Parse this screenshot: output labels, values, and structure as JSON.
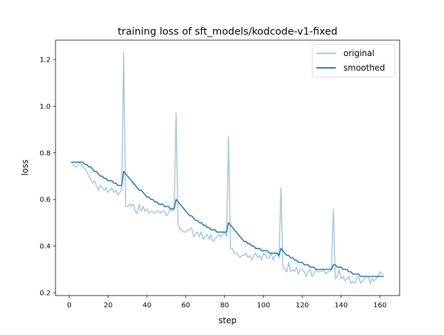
{
  "chart_data": {
    "type": "line",
    "title": "training loss of sft_models/kodcode-v1-fixed",
    "xlabel": "step",
    "ylabel": "loss",
    "xlim": [
      -7.1,
      170.1
    ],
    "ylim": [
      0.188,
      1.283
    ],
    "xticks": [
      0,
      20,
      40,
      60,
      80,
      100,
      120,
      140,
      160
    ],
    "yticks": [
      0.2,
      0.4,
      0.6,
      0.8,
      1.0,
      1.2
    ],
    "ytick_labels": [
      "0.2",
      "0.4",
      "0.6",
      "0.8",
      "1.0",
      "1.2"
    ],
    "grid": false,
    "legend_position": "top-right",
    "x_start": 1,
    "series": [
      {
        "name": "original",
        "color": "#a6c8e2",
        "values": [
          0.76,
          0.75,
          0.74,
          0.74,
          0.76,
          0.75,
          0.74,
          0.73,
          0.72,
          0.7,
          0.69,
          0.67,
          0.68,
          0.66,
          0.64,
          0.66,
          0.65,
          0.64,
          0.65,
          0.63,
          0.64,
          0.65,
          0.63,
          0.64,
          0.62,
          0.63,
          0.64,
          1.23,
          0.57,
          0.57,
          0.58,
          0.57,
          0.58,
          0.55,
          0.54,
          0.58,
          0.55,
          0.57,
          0.55,
          0.56,
          0.54,
          0.55,
          0.55,
          0.54,
          0.55,
          0.55,
          0.54,
          0.55,
          0.55,
          0.53,
          0.54,
          0.56,
          0.55,
          0.57,
          0.97,
          0.5,
          0.47,
          0.47,
          0.46,
          0.46,
          0.47,
          0.47,
          0.48,
          0.44,
          0.45,
          0.46,
          0.44,
          0.46,
          0.43,
          0.44,
          0.45,
          0.43,
          0.45,
          0.42,
          0.43,
          0.44,
          0.45,
          0.44,
          0.45,
          0.46,
          0.44,
          0.87,
          0.39,
          0.39,
          0.37,
          0.37,
          0.36,
          0.35,
          0.36,
          0.36,
          0.37,
          0.35,
          0.36,
          0.34,
          0.36,
          0.37,
          0.35,
          0.36,
          0.34,
          0.37,
          0.36,
          0.35,
          0.35,
          0.37,
          0.34,
          0.36,
          0.37,
          0.35,
          0.65,
          0.31,
          0.3,
          0.29,
          0.33,
          0.29,
          0.3,
          0.29,
          0.31,
          0.28,
          0.3,
          0.3,
          0.29,
          0.27,
          0.29,
          0.3,
          0.27,
          0.28,
          0.3,
          0.29,
          0.29,
          0.29,
          0.3,
          0.28,
          0.29,
          0.29,
          0.3,
          0.56,
          0.26,
          0.27,
          0.3,
          0.26,
          0.27,
          0.25,
          0.26,
          0.27,
          0.24,
          0.25,
          0.24,
          0.26,
          0.27,
          0.24,
          0.25,
          0.26,
          0.27,
          0.27,
          0.24,
          0.26,
          0.25,
          0.26,
          0.27,
          0.29,
          0.28,
          0.28
        ]
      },
      {
        "name": "smoothed",
        "color": "#1f77b4",
        "values": [
          0.76,
          0.76,
          0.76,
          0.76,
          0.76,
          0.76,
          0.76,
          0.75,
          0.75,
          0.74,
          0.74,
          0.73,
          0.72,
          0.72,
          0.71,
          0.7,
          0.7,
          0.69,
          0.69,
          0.68,
          0.68,
          0.68,
          0.67,
          0.67,
          0.66,
          0.66,
          0.66,
          0.72,
          0.71,
          0.7,
          0.69,
          0.68,
          0.67,
          0.66,
          0.65,
          0.64,
          0.64,
          0.63,
          0.62,
          0.61,
          0.61,
          0.6,
          0.6,
          0.59,
          0.59,
          0.58,
          0.58,
          0.58,
          0.57,
          0.57,
          0.57,
          0.56,
          0.56,
          0.56,
          0.6,
          0.59,
          0.58,
          0.57,
          0.56,
          0.55,
          0.54,
          0.53,
          0.53,
          0.52,
          0.51,
          0.51,
          0.5,
          0.5,
          0.49,
          0.49,
          0.48,
          0.48,
          0.47,
          0.47,
          0.47,
          0.46,
          0.46,
          0.46,
          0.46,
          0.46,
          0.46,
          0.5,
          0.49,
          0.48,
          0.47,
          0.46,
          0.45,
          0.44,
          0.43,
          0.42,
          0.42,
          0.41,
          0.41,
          0.4,
          0.4,
          0.39,
          0.39,
          0.39,
          0.38,
          0.38,
          0.38,
          0.38,
          0.37,
          0.37,
          0.37,
          0.37,
          0.37,
          0.36,
          0.39,
          0.38,
          0.37,
          0.36,
          0.36,
          0.35,
          0.35,
          0.34,
          0.34,
          0.33,
          0.33,
          0.33,
          0.32,
          0.32,
          0.32,
          0.31,
          0.31,
          0.31,
          0.3,
          0.3,
          0.3,
          0.3,
          0.3,
          0.3,
          0.3,
          0.3,
          0.3,
          0.32,
          0.32,
          0.31,
          0.31,
          0.31,
          0.3,
          0.3,
          0.3,
          0.29,
          0.29,
          0.28,
          0.28,
          0.28,
          0.28,
          0.27,
          0.27,
          0.27,
          0.27,
          0.27,
          0.27,
          0.27,
          0.27,
          0.27,
          0.27,
          0.27,
          0.27,
          0.27
        ]
      }
    ]
  }
}
